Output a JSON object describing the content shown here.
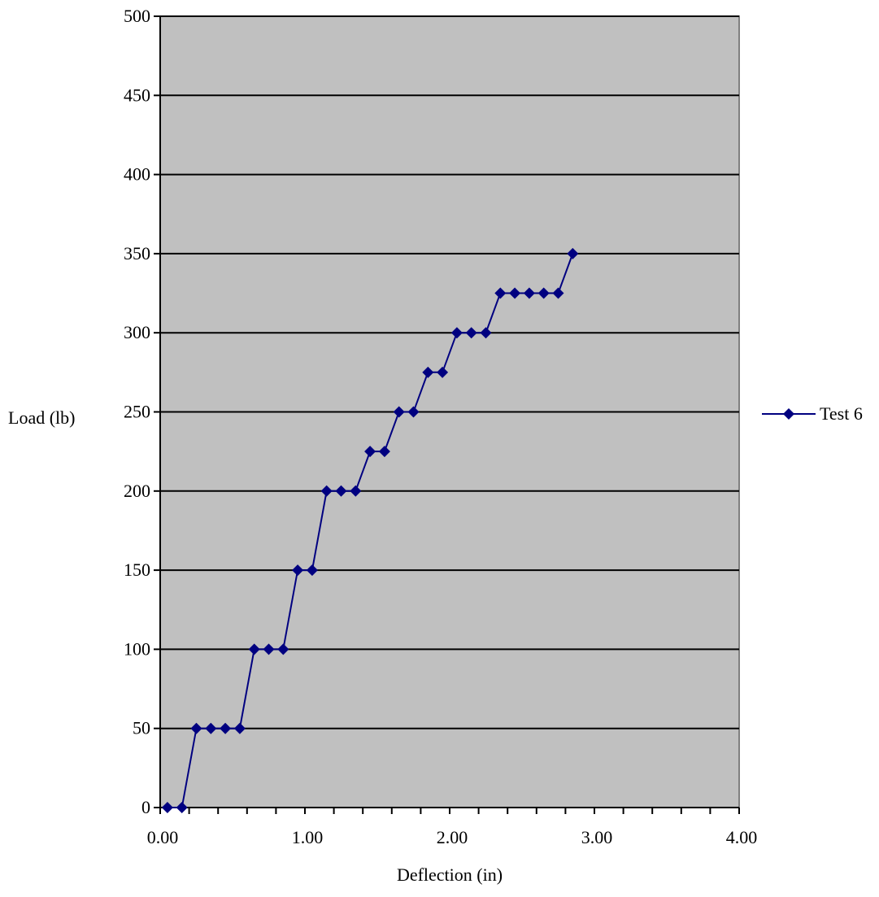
{
  "chart_data": {
    "type": "line",
    "title": "",
    "xlabel": "Deflection (in)",
    "ylabel": "Load (lb)",
    "xlim": [
      0,
      4
    ],
    "ylim": [
      0,
      500
    ],
    "x_ticks": [
      "0.00",
      "1.00",
      "2.00",
      "3.00",
      "4.00"
    ],
    "x_tick_values": [
      0,
      1,
      2,
      3,
      4
    ],
    "x_minor_step": 0.2,
    "y_ticks": [
      "0",
      "50",
      "100",
      "150",
      "200",
      "250",
      "300",
      "350",
      "400",
      "450",
      "500"
    ],
    "y_tick_values": [
      0,
      50,
      100,
      150,
      200,
      250,
      300,
      350,
      400,
      450,
      500
    ],
    "grid": "horizontal",
    "legend": "right",
    "colors": {
      "plot_background": "#c0c0c0",
      "series": "#000080",
      "gridline": "#000000",
      "axis": "#000000"
    },
    "series": [
      {
        "name": "Test 6",
        "marker": "diamond",
        "points": [
          [
            0.05,
            0
          ],
          [
            0.15,
            0
          ],
          [
            0.25,
            50
          ],
          [
            0.35,
            50
          ],
          [
            0.45,
            50
          ],
          [
            0.55,
            50
          ],
          [
            0.65,
            100
          ],
          [
            0.75,
            100
          ],
          [
            0.85,
            100
          ],
          [
            0.95,
            150
          ],
          [
            1.05,
            150
          ],
          [
            1.15,
            200
          ],
          [
            1.25,
            200
          ],
          [
            1.35,
            200
          ],
          [
            1.45,
            225
          ],
          [
            1.55,
            225
          ],
          [
            1.65,
            250
          ],
          [
            1.75,
            250
          ],
          [
            1.85,
            275
          ],
          [
            1.95,
            275
          ],
          [
            2.05,
            300
          ],
          [
            2.15,
            300
          ],
          [
            2.25,
            300
          ],
          [
            2.35,
            325
          ],
          [
            2.45,
            325
          ],
          [
            2.55,
            325
          ],
          [
            2.65,
            325
          ],
          [
            2.75,
            325
          ],
          [
            2.85,
            350
          ]
        ]
      }
    ]
  }
}
